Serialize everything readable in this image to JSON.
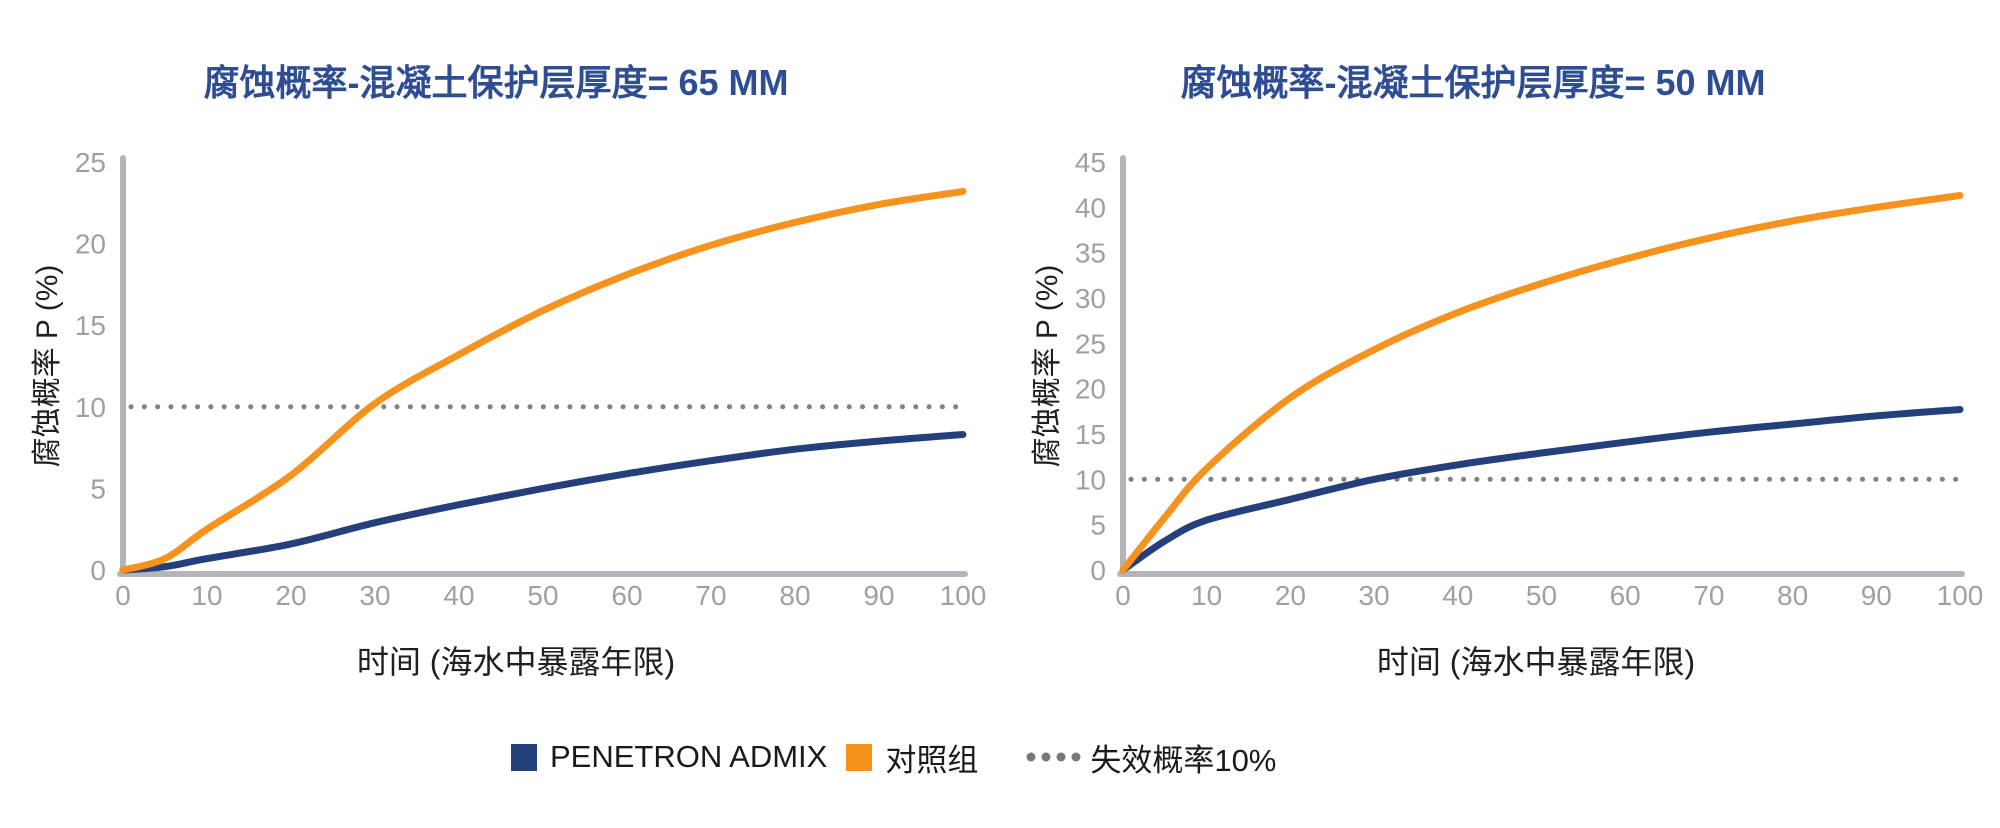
{
  "figure": {
    "background": "#FFFFFF"
  },
  "colors": {
    "title": "#2E4D92",
    "tick_label": "#9EA0A3",
    "axis": "#B3B5B8",
    "axis_text": "#1F1F1F",
    "threshold": "#808285",
    "legend_dots": "#77787B",
    "penetron_navy": "#24407C",
    "control_orange": "#F6921E"
  },
  "chart_data": [
    {
      "type": "line",
      "title": "腐蚀概率-混凝土保护层厚度= 65 MM",
      "xlabel": "时间 (海水中暴露年限)",
      "ylabel": "腐蚀概率 P (%)",
      "xlim": [
        0,
        100
      ],
      "ylim": [
        0,
        25
      ],
      "x_ticks": [
        0,
        10,
        20,
        30,
        40,
        50,
        60,
        70,
        80,
        90,
        100
      ],
      "y_ticks": [
        0,
        5,
        10,
        15,
        20,
        25
      ],
      "grid": false,
      "legend_position": "bottom",
      "x": [
        0,
        5,
        10,
        20,
        30,
        40,
        50,
        60,
        70,
        80,
        90,
        100
      ],
      "series": [
        {
          "name": "PENETRON ADMIX",
          "color": "#24407C",
          "values": [
            0,
            0.2,
            0.7,
            1.6,
            2.9,
            4.0,
            5.0,
            5.9,
            6.7,
            7.4,
            7.9,
            8.3
          ]
        },
        {
          "name": "对照组",
          "color": "#F6921E",
          "values": [
            0,
            0.7,
            2.5,
            5.8,
            10.2,
            13.2,
            15.9,
            18.1,
            19.9,
            21.3,
            22.4,
            23.2
          ]
        }
      ],
      "threshold": {
        "label": "失效概率10%",
        "value": 10,
        "style": "dotted",
        "color": "#808285"
      }
    },
    {
      "type": "line",
      "title": "腐蚀概率-混凝土保护层厚度= 50 MM",
      "xlabel": "时间 (海水中暴露年限)",
      "ylabel": "腐蚀概率 P (%)",
      "xlim": [
        0,
        100
      ],
      "ylim": [
        0,
        45
      ],
      "x_ticks": [
        0,
        10,
        20,
        30,
        40,
        50,
        60,
        70,
        80,
        90,
        100
      ],
      "y_ticks": [
        0,
        5,
        10,
        15,
        20,
        25,
        30,
        35,
        40,
        45
      ],
      "grid": false,
      "legend_position": "bottom",
      "x": [
        0,
        5,
        10,
        20,
        30,
        40,
        50,
        60,
        70,
        80,
        90,
        100
      ],
      "series": [
        {
          "name": "PENETRON ADMIX",
          "color": "#24407C",
          "values": [
            0,
            3.2,
            5.5,
            7.8,
            10.0,
            11.6,
            12.9,
            14.1,
            15.2,
            16.1,
            17.0,
            17.7
          ]
        },
        {
          "name": "对照组",
          "color": "#F6921E",
          "values": [
            0,
            5.8,
            11.2,
            19.0,
            24.3,
            28.4,
            31.6,
            34.3,
            36.6,
            38.5,
            40.0,
            41.3
          ]
        }
      ],
      "threshold": {
        "label": "失效概率10%",
        "value": 10,
        "style": "dotted",
        "color": "#808285"
      }
    }
  ],
  "legend": {
    "items": [
      {
        "label": "PENETRON ADMIX",
        "swatch": "square",
        "color": "#24407C"
      },
      {
        "label": "对照组",
        "swatch": "square",
        "color": "#F6921E"
      },
      {
        "label": "失效概率10%",
        "swatch": "dotted-line",
        "color": "#77787B"
      }
    ]
  }
}
